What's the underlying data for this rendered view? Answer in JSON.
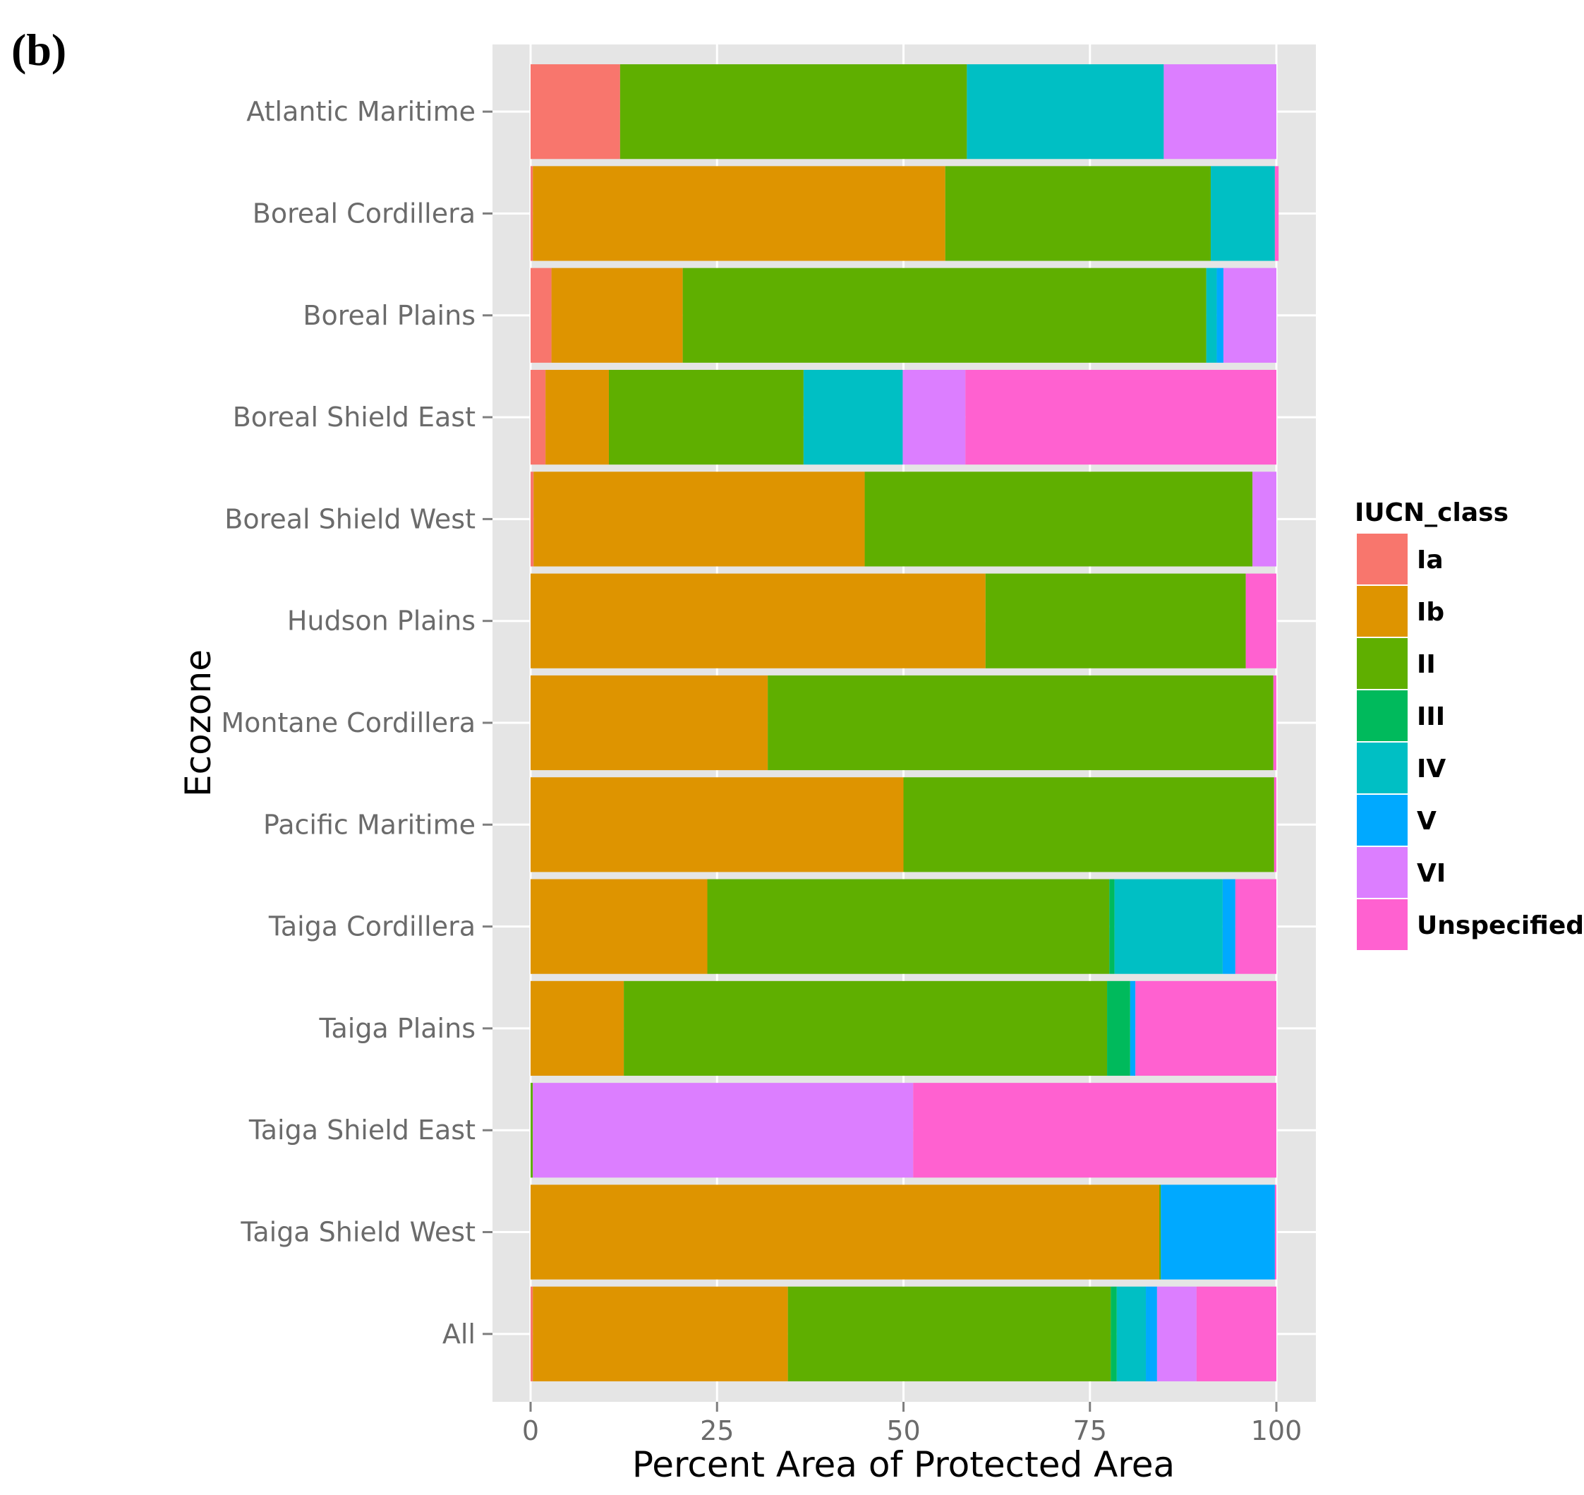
{
  "panel_label": "(b)",
  "chart_data": {
    "type": "bar",
    "orientation": "horizontal",
    "stacked": true,
    "xlabel": "Percent Area of Protected Area",
    "ylabel": "Ecozone",
    "xlim": [
      0,
      100
    ],
    "x_ticks": [
      0,
      25,
      50,
      75,
      100
    ],
    "x_tick_labels": [
      "0",
      "25",
      "50",
      "75",
      "100"
    ],
    "grid": true,
    "legend_position": "right",
    "legend_title": "IUCN_class",
    "categories": [
      "Atlantic Maritime",
      "Boreal Cordillera",
      "Boreal Plains",
      "Boreal Shield East",
      "Boreal Shield West",
      "Hudson Plains",
      "Montane Cordillera",
      "Pacific Maritime",
      "Taiga Cordillera",
      "Taiga Plains",
      "Taiga Shield East",
      "Taiga Shield West",
      "All"
    ],
    "series": [
      {
        "name": "Ia",
        "color": "#F8766D",
        "values": [
          12,
          0.3,
          2.8,
          2,
          0.4,
          0,
          0,
          0,
          0,
          0,
          0,
          0,
          0.3
        ]
      },
      {
        "name": "Ib",
        "color": "#DE9400",
        "values": [
          0,
          55.3,
          17.6,
          8.5,
          44.4,
          61,
          31.8,
          50,
          23.7,
          12.5,
          0,
          84.3,
          34.2
        ]
      },
      {
        "name": "II",
        "color": "#5FAF00",
        "values": [
          46.5,
          35.6,
          70.2,
          26.1,
          52,
          34.9,
          67.8,
          49.7,
          53.9,
          64.8,
          0.3,
          0.2,
          43.3
        ]
      },
      {
        "name": "III",
        "color": "#00BA5C",
        "values": [
          0,
          0,
          0,
          0,
          0,
          0,
          0,
          0,
          0.7,
          3.1,
          0,
          0,
          0.8
        ]
      },
      {
        "name": "IV",
        "color": "#00BFC4",
        "values": [
          26.4,
          8.6,
          1.4,
          13.3,
          0,
          0,
          0,
          0,
          14.5,
          0,
          0,
          0,
          3.9
        ]
      },
      {
        "name": "V",
        "color": "#00A9FF",
        "values": [
          0,
          0,
          0.9,
          0,
          0,
          0,
          0,
          0,
          1.7,
          0.7,
          0,
          15.3,
          1.5
        ]
      },
      {
        "name": "VI",
        "color": "#DC7EFF",
        "values": [
          15.1,
          0,
          7.1,
          8.4,
          3.2,
          0,
          0,
          0,
          0,
          0,
          51,
          0,
          5.3
        ]
      },
      {
        "name": "Unspecified",
        "color": "#FF61D0",
        "values": [
          0,
          0.5,
          0,
          41.7,
          0,
          4.1,
          0.4,
          0.3,
          5.5,
          18.9,
          48.7,
          0.2,
          10.7
        ]
      }
    ]
  }
}
